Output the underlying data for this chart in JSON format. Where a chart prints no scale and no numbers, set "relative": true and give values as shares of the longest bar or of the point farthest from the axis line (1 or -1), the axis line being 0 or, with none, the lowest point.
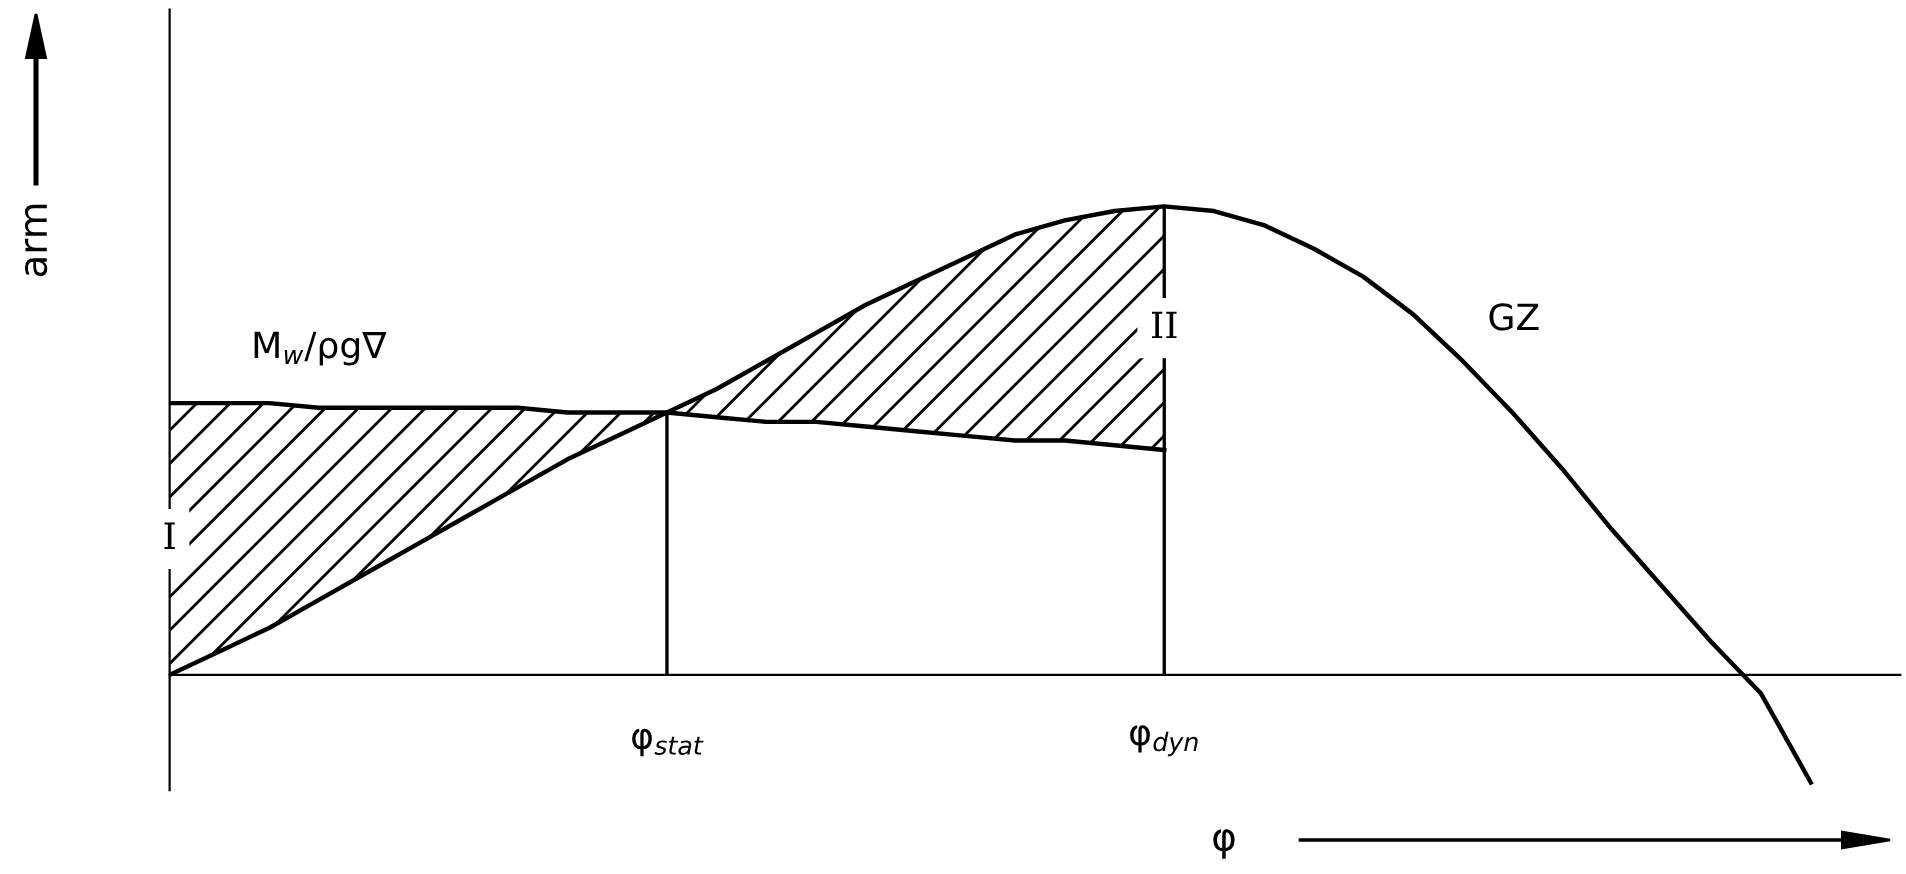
{
  "chart_data": {
    "type": "line",
    "relative": true,
    "xlabel": "φ",
    "ylabel": "arm",
    "categories": [
      null,
      null,
      null,
      null,
      null,
      null,
      null,
      null,
      null,
      null,
      "φ$_{stat}$",
      null,
      null,
      null,
      null,
      null,
      null,
      null,
      null,
      null,
      "φ$_{dyn}$",
      null,
      null,
      null,
      null,
      null,
      null,
      null,
      null,
      null,
      null,
      null,
      null,
      null
    ],
    "series": [
      {
        "name": "GZ",
        "color": "#000000",
        "values": [
          0,
          0.05,
          0.1,
          0.16,
          0.22,
          0.28,
          0.34,
          0.4,
          0.46,
          0.51,
          0.56,
          0.61,
          0.67,
          0.73,
          0.79,
          0.84,
          0.89,
          0.94,
          0.97,
          0.99,
          1.0,
          0.99,
          0.96,
          0.91,
          0.85,
          0.77,
          0.67,
          0.56,
          0.44,
          0.31,
          0.19,
          0.07,
          -0.04,
          -0.23
        ],
        "lower": [
          null,
          null,
          null,
          null,
          null,
          null,
          null,
          null,
          null,
          null,
          0.56,
          0.55,
          0.54,
          0.54,
          0.53,
          0.52,
          0.51,
          0.5,
          0.5,
          0.49,
          0.48,
          null,
          null,
          null,
          null,
          null,
          null,
          null,
          null,
          null,
          null,
          null,
          null,
          null
        ],
        "upper": [
          null,
          null,
          null,
          null,
          null,
          null,
          null,
          null,
          null,
          null,
          0.56,
          0.61,
          0.67,
          0.73,
          0.79,
          0.84,
          0.89,
          0.94,
          0.97,
          0.99,
          1.0,
          null,
          null,
          null,
          null,
          null,
          null,
          null,
          null,
          null,
          null,
          null,
          null,
          null
        ]
      },
      {
        "name": "M$_{w}$/ρg∇",
        "color": "#000000",
        "values": [
          0.58,
          0.58,
          0.58,
          0.57,
          0.57,
          0.57,
          0.57,
          0.57,
          0.56,
          0.56,
          0.56,
          0.55,
          0.54,
          0.54,
          0.53,
          0.52,
          0.51,
          0.5,
          0.5,
          0.49,
          0.48,
          null,
          null,
          null,
          null,
          null,
          null,
          null,
          null,
          null,
          null,
          null,
          null,
          null
        ],
        "lower": [
          0,
          0.05,
          0.1,
          0.16,
          0.22,
          0.28,
          0.34,
          0.4,
          0.46,
          0.51,
          0.56,
          null,
          null,
          null,
          null,
          null,
          null,
          null,
          null,
          null,
          null,
          null,
          null,
          null,
          null,
          null,
          null,
          null,
          null,
          null,
          null,
          null,
          null,
          null
        ],
        "upper": [
          0.58,
          0.58,
          0.58,
          0.57,
          0.57,
          0.57,
          0.57,
          0.57,
          0.56,
          0.56,
          0.56,
          null,
          null,
          null,
          null,
          null,
          null,
          null,
          null,
          null,
          null,
          null,
          null,
          null,
          null,
          null,
          null,
          null,
          null,
          null,
          null,
          null,
          null,
          null
        ]
      }
    ],
    "annotations": [
      "I",
      "II"
    ],
    "ref_lines": [
      {
        "axis": "x",
        "value": "φ$_{stat}$"
      },
      {
        "axis": "x",
        "value": "φ$_{dyn}$"
      }
    ],
    "grid": false,
    "marker": "none",
    "line_style": "solid"
  }
}
